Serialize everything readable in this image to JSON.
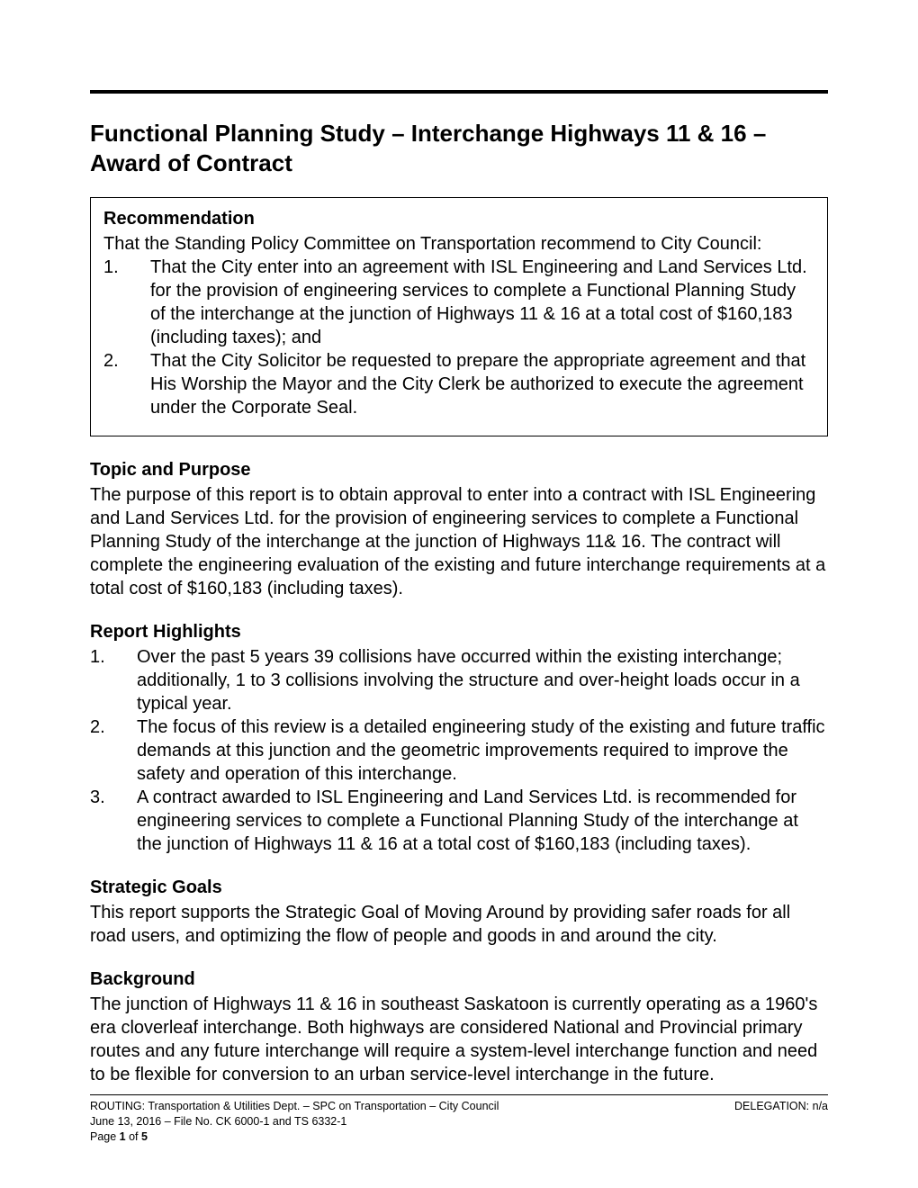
{
  "title": "Functional Planning Study – Interchange Highways 11 & 16 – Award of Contract",
  "recommendation": {
    "heading": "Recommendation",
    "intro": "That the Standing Policy Committee on Transportation recommend to City Council:",
    "items": [
      "That the City enter into an agreement with ISL Engineering and Land Services Ltd. for the provision of engineering services to complete a Functional Planning Study of the interchange at the junction of Highways 11 & 16 at a total cost of $160,183 (including taxes); and",
      "That the City Solicitor be requested to prepare the appropriate agreement and that His Worship the Mayor and the City Clerk be authorized to execute the agreement under the Corporate Seal."
    ]
  },
  "topic_purpose": {
    "heading": "Topic and Purpose",
    "text": "The purpose of this report is to obtain approval to enter into a contract with ISL Engineering and Land Services Ltd. for the provision of engineering services to complete a Functional Planning Study of the interchange at the junction of Highways 11& 16.  The contract will complete the engineering evaluation of the existing and future interchange requirements at a total cost of $160,183 (including taxes)."
  },
  "report_highlights": {
    "heading": "Report Highlights",
    "items": [
      "Over the past 5 years 39 collisions have occurred within the existing interchange; additionally, 1 to 3 collisions involving the structure and over-height loads occur in a typical year.",
      "The focus of this review is a detailed engineering study of the existing and future traffic demands at this junction and the geometric improvements required to improve the safety and operation of this interchange.",
      "A contract awarded to ISL Engineering and Land Services Ltd. is recommended for engineering services to complete a Functional Planning Study of the interchange at the junction of Highways 11 & 16 at a total cost of $160,183 (including taxes)."
    ]
  },
  "strategic_goals": {
    "heading": "Strategic Goals",
    "text": "This report supports the Strategic Goal of Moving Around by providing safer roads for all road users, and optimizing the flow of people and goods in and around the city."
  },
  "background": {
    "heading": "Background",
    "text": "The junction of Highways 11 & 16 in southeast Saskatoon is currently operating as a 1960's era cloverleaf interchange.  Both highways are considered National and Provincial primary routes and any future interchange will require a system-level interchange function and need to be flexible for conversion to an urban service-level interchange in the future."
  },
  "footer": {
    "routing": "ROUTING: Transportation & Utilities Dept. – SPC on Transportation – City Council",
    "delegation": "DELEGATION: n/a",
    "date_file": "June 13, 2016 – File No. CK 6000-1 and TS 6332-1",
    "page_label_prefix": "Page ",
    "page_current": "1",
    "page_of": " of ",
    "page_total": "5"
  },
  "list_numbers": [
    "1.",
    "2.",
    "3."
  ],
  "styles": {
    "background_color": "#ffffff",
    "text_color": "#000000",
    "title_fontsize": 26,
    "body_fontsize": 20,
    "footer_fontsize": 12.5,
    "top_rule_width": 4,
    "footer_rule_width": 1,
    "box_border_width": 1
  }
}
